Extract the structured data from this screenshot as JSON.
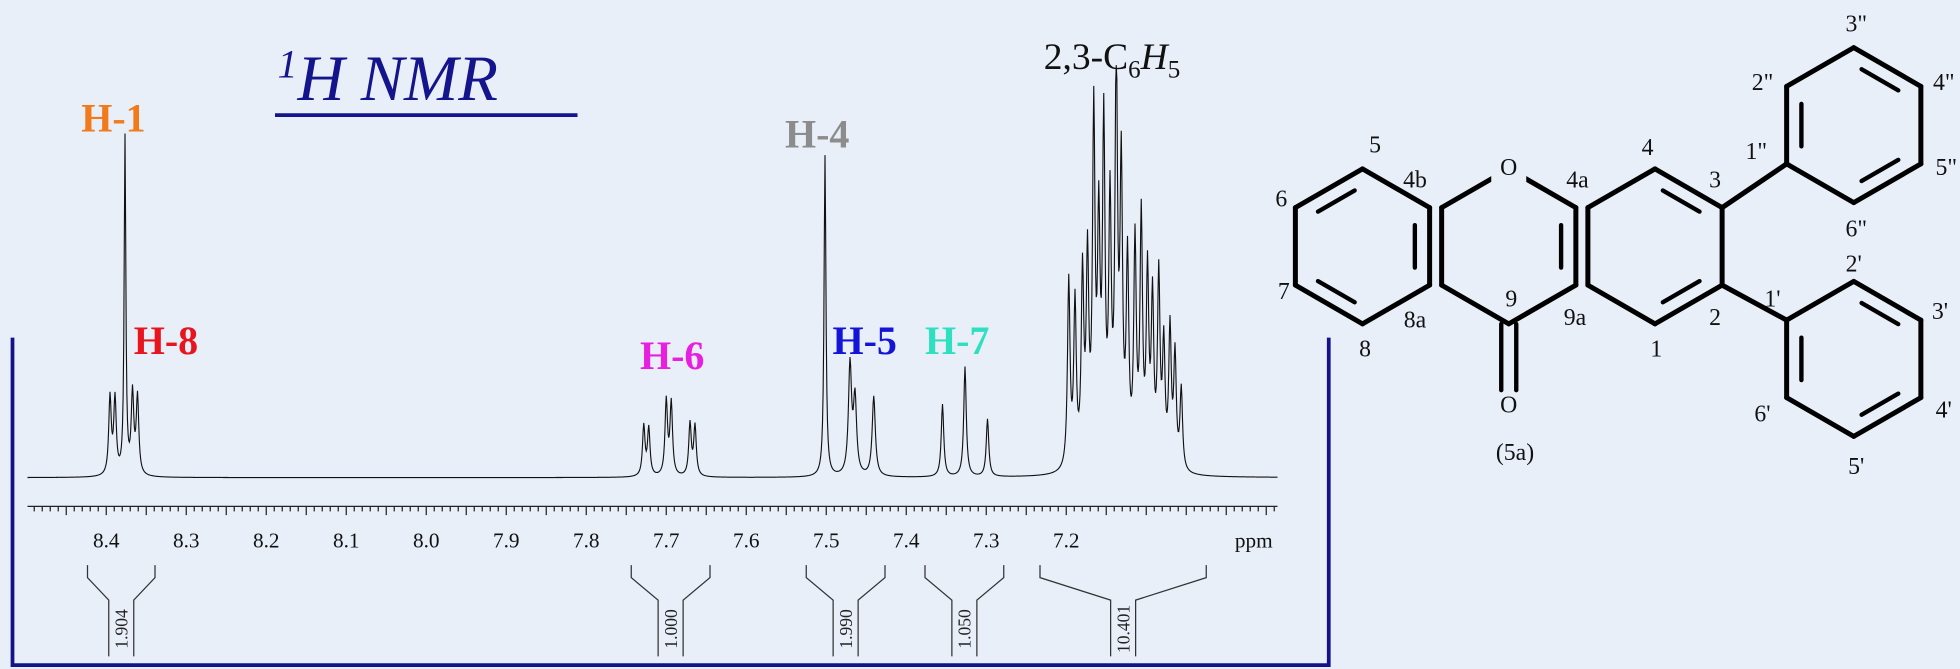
{
  "title": {
    "sup": "1",
    "text": "H NMR"
  },
  "peak_labels": [
    "H-1",
    "H-8",
    "H-6",
    "H-4",
    "H-5",
    "H-7"
  ],
  "phenyl_label": [
    "2,3-C",
    "6",
    "H",
    "5"
  ],
  "axis": {
    "ticks": [
      "8.4",
      "8.3",
      "8.2",
      "8.1",
      "8.0",
      "7.9",
      "7.8",
      "7.7",
      "7.6",
      "7.5",
      "7.4",
      "7.3",
      "7.2"
    ],
    "unit": "ppm"
  },
  "integrals": [
    "1.904",
    "1.000",
    "1.990",
    "1.050",
    "10.401"
  ],
  "structure": {
    "atoms": [
      "5",
      "6",
      "7",
      "8",
      "4b",
      "8a",
      "O",
      "4a",
      "9a",
      "9",
      "O",
      "4",
      "3",
      "2",
      "1",
      "1\"",
      "2\"",
      "3\"",
      "4\"",
      "5\"",
      "6\"",
      "1'",
      "2'",
      "3'",
      "4'",
      "5'",
      "6'"
    ],
    "compound": "(5a)"
  }
}
